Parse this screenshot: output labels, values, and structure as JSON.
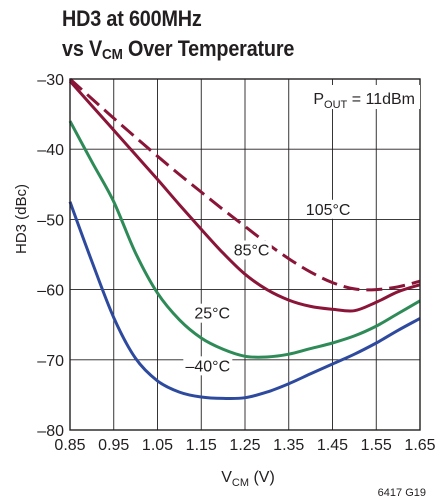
{
  "chart_data": {
    "type": "line",
    "title_line1": "HD3 at 600MHz",
    "title_line2_prefix": "vs V",
    "title_line2_sub": "CM",
    "title_line2_suffix": " Over Temperature",
    "ylabel": "HD3 (dBc)",
    "xlabel_prefix": "V",
    "xlabel_sub": "CM",
    "xlabel_suffix": " (V)",
    "annotation_prefix": "P",
    "annotation_sub": "OUT",
    "annotation_suffix": " = 11dBm",
    "figure_id": "6417 G19",
    "xlim": [
      0.85,
      1.65
    ],
    "ylim": [
      -80,
      -30
    ],
    "x_ticks": [
      0.85,
      0.95,
      1.05,
      1.15,
      1.25,
      1.35,
      1.45,
      1.55,
      1.65
    ],
    "x_tick_labels": [
      "0.85",
      "0.95",
      "1.05",
      "1.15",
      "1.25",
      "1.35",
      "1.45",
      "1.55",
      "1.65"
    ],
    "y_ticks": [
      -80,
      -70,
      -60,
      -50,
      -40,
      -30
    ],
    "y_tick_labels": [
      "–80",
      "–70",
      "–60",
      "–50",
      "–40",
      "–30"
    ],
    "grid": true,
    "series": [
      {
        "name": "105°C",
        "color": "#8a1538",
        "dashed": true,
        "x": [
          0.85,
          0.9,
          0.95,
          1.0,
          1.05,
          1.1,
          1.15,
          1.2,
          1.25,
          1.3,
          1.35,
          1.4,
          1.45,
          1.5,
          1.55,
          1.6,
          1.65
        ],
        "y": [
          -30.0,
          -32.8,
          -35.6,
          -38.3,
          -41.0,
          -43.6,
          -46.1,
          -48.6,
          -51.0,
          -53.4,
          -55.6,
          -57.5,
          -59.0,
          -59.9,
          -60.0,
          -59.6,
          -58.8
        ]
      },
      {
        "name": "85°C",
        "color": "#8a1538",
        "dashed": false,
        "x": [
          0.85,
          0.9,
          0.95,
          1.0,
          1.05,
          1.1,
          1.15,
          1.2,
          1.25,
          1.3,
          1.35,
          1.4,
          1.45,
          1.5,
          1.55,
          1.6,
          1.65
        ],
        "y": [
          -30.3,
          -33.8,
          -37.3,
          -40.8,
          -44.3,
          -47.9,
          -51.4,
          -54.8,
          -57.8,
          -60.0,
          -61.5,
          -62.4,
          -62.8,
          -63.0,
          -61.8,
          -60.3,
          -59.3
        ]
      },
      {
        "name": "25°C",
        "color": "#2e8b57",
        "dashed": false,
        "x": [
          0.85,
          0.9,
          0.95,
          1.0,
          1.05,
          1.1,
          1.15,
          1.2,
          1.25,
          1.3,
          1.35,
          1.4,
          1.45,
          1.5,
          1.55,
          1.6,
          1.65
        ],
        "y": [
          -36.0,
          -41.8,
          -47.5,
          -54.8,
          -60.5,
          -64.3,
          -66.9,
          -68.5,
          -69.5,
          -69.6,
          -69.2,
          -68.4,
          -67.6,
          -66.6,
          -65.2,
          -63.4,
          -61.6
        ]
      },
      {
        "name": "–40°C",
        "color": "#2e4a9e",
        "dashed": false,
        "x": [
          0.85,
          0.9,
          0.95,
          1.0,
          1.05,
          1.1,
          1.15,
          1.2,
          1.25,
          1.3,
          1.35,
          1.4,
          1.45,
          1.5,
          1.55,
          1.6,
          1.65
        ],
        "y": [
          -47.5,
          -56.0,
          -64.0,
          -69.8,
          -73.0,
          -74.6,
          -75.3,
          -75.5,
          -75.4,
          -74.6,
          -73.4,
          -72.0,
          -70.6,
          -69.2,
          -67.6,
          -65.8,
          -64.1
        ]
      }
    ]
  }
}
